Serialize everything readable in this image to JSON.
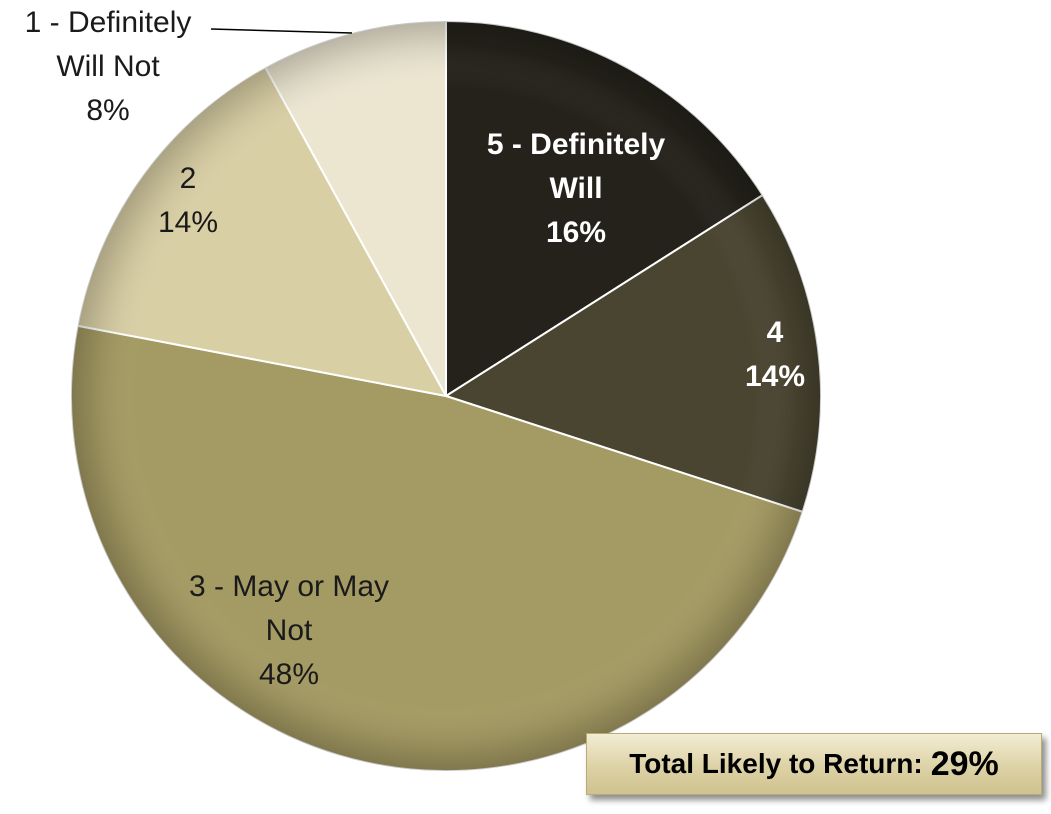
{
  "chart_data": {
    "type": "pie",
    "slices": [
      {
        "label_lines": [
          "5 - Definitely",
          "Will"
        ],
        "pct_label": "16%",
        "value": 16,
        "color": "#24221a",
        "text_color": "#ffffff",
        "bold": true
      },
      {
        "label_lines": [
          "4"
        ],
        "pct_label": "14%",
        "value": 14,
        "color": "#4a4531",
        "text_color": "#ffffff",
        "bold": true
      },
      {
        "label_lines": [
          "3 - May or May",
          "Not"
        ],
        "pct_label": "48%",
        "value": 48,
        "color": "#a49a63",
        "text_color": "#1a1a1a",
        "bold": false
      },
      {
        "label_lines": [
          "2"
        ],
        "pct_label": "14%",
        "value": 14,
        "color": "#d9cfa5",
        "text_color": "#1a1a1a",
        "bold": false
      },
      {
        "label_lines": [
          "1 - Definitely",
          "Will Not"
        ],
        "pct_label": "8%",
        "value": 8,
        "color": "#ece6d1",
        "text_color": "#1a1a1a",
        "bold": false
      }
    ],
    "start_angle_deg": 0,
    "direction": "clockwise"
  },
  "summary": {
    "label": "Total Likely to Return:",
    "value": "29%"
  }
}
